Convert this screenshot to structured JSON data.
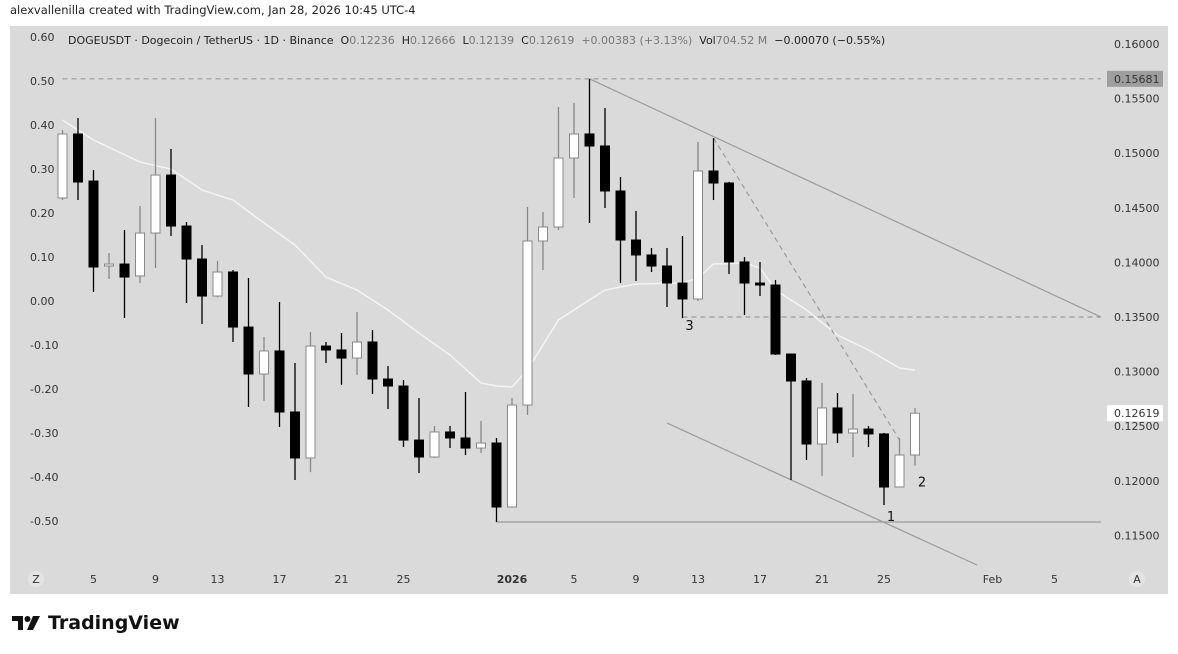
{
  "credit": "alexvallenilla created with TradingView.com, Jan 28, 2026 10:45 UTC-4",
  "legend": {
    "symbol": "DOGEUSDT · Dogecoin / TetherUS · 1D · Binance",
    "o_label": "O",
    "o": "0.12236",
    "h_label": "H",
    "h": "0.12666",
    "l_label": "L",
    "l": "0.12139",
    "c_label": "C",
    "c": "0.12619",
    "change": "+0.00383 (+3.13%)",
    "vol_label": "Vol",
    "vol": "704.52 M",
    "indicator": "−0.00070 (−0.55%)"
  },
  "logo": {
    "text": "TradingView"
  },
  "colors": {
    "background": "#dadada",
    "bear": "#000000",
    "bull": "#ffffff",
    "bull_border": "#888888",
    "ma": "#f4f4f4",
    "drawing": "#9a9a9a",
    "high_tag": "#9e9e9e"
  },
  "chart_data": {
    "type": "candlestick",
    "right_axis": {
      "ticks": [
        "0.16000",
        "0.15500",
        "0.15000",
        "0.14500",
        "0.14000",
        "0.13500",
        "0.13000",
        "0.12500",
        "0.12000",
        "0.11500"
      ],
      "range": [
        0.1125,
        0.1645
      ]
    },
    "left_axis": {
      "ticks": [
        "0.60",
        "0.50",
        "0.40",
        "0.30",
        "0.20",
        "0.10",
        "0.00",
        "-0.10",
        "-0.20",
        "-0.30",
        "-0.40",
        "-0.50"
      ]
    },
    "x_axis": {
      "ticks": [
        {
          "label": "5",
          "date": "2025-12-05"
        },
        {
          "label": "9",
          "date": "2025-12-09"
        },
        {
          "label": "13",
          "date": "2025-12-13"
        },
        {
          "label": "17",
          "date": "2025-12-17"
        },
        {
          "label": "21",
          "date": "2025-12-21"
        },
        {
          "label": "25",
          "date": "2025-12-25"
        },
        {
          "label": "2026",
          "date": "2026-01-01",
          "bold": true
        },
        {
          "label": "5",
          "date": "2026-01-05"
        },
        {
          "label": "9",
          "date": "2026-01-09"
        },
        {
          "label": "13",
          "date": "2026-01-13"
        },
        {
          "label": "17",
          "date": "2026-01-17"
        },
        {
          "label": "21",
          "date": "2026-01-21"
        },
        {
          "label": "25",
          "date": "2026-01-25"
        },
        {
          "label": "Feb",
          "date": "2026-02-01"
        },
        {
          "label": "5",
          "date": "2026-02-05"
        }
      ],
      "left_button": "Z",
      "right_button": "A"
    },
    "price_tags": [
      {
        "value": "0.15681",
        "style": "high"
      },
      {
        "value": "0.12619",
        "style": "last"
      }
    ],
    "candles": [
      [
        "2025-12-03",
        0.1459,
        0.15212,
        0.14571,
        0.15176
      ],
      [
        "2025-12-04",
        0.15176,
        0.15322,
        0.14571,
        0.14736
      ],
      [
        "2025-12-05",
        0.14745,
        0.14846,
        0.13729,
        0.13958
      ],
      [
        "2025-12-06",
        0.13967,
        0.14086,
        0.13848,
        0.13985
      ],
      [
        "2025-12-07",
        0.13985,
        0.14297,
        0.13491,
        0.13866
      ],
      [
        "2025-12-08",
        0.13876,
        0.14517,
        0.13811,
        0.14269
      ],
      [
        "2025-12-09",
        0.14269,
        0.15322,
        0.13949,
        0.148
      ],
      [
        "2025-12-10",
        0.148,
        0.15039,
        0.14242,
        0.14333
      ],
      [
        "2025-12-11",
        0.14333,
        0.1437,
        0.13628,
        0.14031
      ],
      [
        "2025-12-12",
        0.14031,
        0.14159,
        0.13436,
        0.13692
      ],
      [
        "2025-12-13",
        0.13692,
        0.14013,
        0.1368,
        0.13912
      ],
      [
        "2025-12-14",
        0.13912,
        0.1393,
        0.13271,
        0.13408
      ],
      [
        "2025-12-15",
        0.13408,
        0.13857,
        0.12676,
        0.12978
      ],
      [
        "2025-12-16",
        0.12978,
        0.13317,
        0.12731,
        0.13189
      ],
      [
        "2025-12-17",
        0.13189,
        0.13637,
        0.12493,
        0.1263
      ],
      [
        "2025-12-18",
        0.1263,
        0.13079,
        0.12007,
        0.12209
      ],
      [
        "2025-12-19",
        0.12209,
        0.13363,
        0.1208,
        0.13234
      ],
      [
        "2025-12-20",
        0.13234,
        0.13271,
        0.13079,
        0.13198
      ],
      [
        "2025-12-21",
        0.13198,
        0.13353,
        0.12877,
        0.13124
      ],
      [
        "2025-12-22",
        0.13124,
        0.13546,
        0.12969,
        0.13271
      ],
      [
        "2025-12-23",
        0.13271,
        0.13381,
        0.12795,
        0.12932
      ],
      [
        "2025-12-24",
        0.12932,
        0.13051,
        0.12657,
        0.12868
      ],
      [
        "2025-12-25",
        0.12868,
        0.12923,
        0.12309,
        0.12373
      ],
      [
        "2025-12-26",
        0.12373,
        0.12758,
        0.12071,
        0.12218
      ],
      [
        "2025-12-27",
        0.12218,
        0.12502,
        0.12209,
        0.12447
      ],
      [
        "2025-12-28",
        0.12447,
        0.12502,
        0.123,
        0.12392
      ],
      [
        "2025-12-29",
        0.12392,
        0.12813,
        0.12236,
        0.123
      ],
      [
        "2025-12-30",
        0.123,
        0.12548,
        0.12254,
        0.12346
      ],
      [
        "2025-12-31",
        0.12346,
        0.12392,
        0.11623,
        0.1176
      ],
      [
        "2026-01-01",
        0.1176,
        0.12758,
        0.1176,
        0.12694
      ],
      [
        "2026-01-02",
        0.12694,
        0.14507,
        0.12602,
        0.14196
      ],
      [
        "2026-01-03",
        0.14196,
        0.14462,
        0.1393,
        0.14324
      ],
      [
        "2026-01-04",
        0.14324,
        0.15423,
        0.14297,
        0.14956
      ],
      [
        "2026-01-05",
        0.14956,
        0.1546,
        0.1459,
        0.15176
      ],
      [
        "2026-01-06",
        0.15176,
        0.15681,
        0.14361,
        0.15066
      ],
      [
        "2026-01-07",
        0.15066,
        0.15414,
        0.14498,
        0.14654
      ],
      [
        "2026-01-08",
        0.14654,
        0.14782,
        0.13811,
        0.14205
      ],
      [
        "2026-01-09",
        0.14205,
        0.14471,
        0.1383,
        0.14068
      ],
      [
        "2026-01-10",
        0.14068,
        0.14132,
        0.13912,
        0.13967
      ],
      [
        "2026-01-11",
        0.13967,
        0.14132,
        0.13592,
        0.13811
      ],
      [
        "2026-01-12",
        0.13811,
        0.14242,
        0.1349,
        0.13665
      ],
      [
        "2026-01-13",
        0.13665,
        0.15103,
        0.13647,
        0.14837
      ],
      [
        "2026-01-14",
        0.14837,
        0.15139,
        0.14571,
        0.14727
      ],
      [
        "2026-01-15",
        0.14727,
        0.14737,
        0.13894,
        0.14004
      ],
      [
        "2026-01-16",
        0.14004,
        0.14049,
        0.13518,
        0.13811
      ],
      [
        "2026-01-17",
        0.13811,
        0.14004,
        0.13692,
        0.13793
      ],
      [
        "2026-01-18",
        0.13793,
        0.13839,
        0.13152,
        0.13161
      ],
      [
        "2026-01-19",
        0.13161,
        0.13161,
        0.12007,
        0.12914
      ],
      [
        "2026-01-20",
        0.12914,
        0.12941,
        0.1219,
        0.12337
      ],
      [
        "2026-01-21",
        0.12337,
        0.12896,
        0.12044,
        0.12667
      ],
      [
        "2026-01-22",
        0.12667,
        0.12804,
        0.12346,
        0.12438
      ],
      [
        "2026-01-23",
        0.12438,
        0.12795,
        0.12218,
        0.12474
      ],
      [
        "2026-01-24",
        0.12474,
        0.12502,
        0.12309,
        0.12429
      ],
      [
        "2026-01-25",
        0.12429,
        0.12438,
        0.11778,
        0.11943
      ],
      [
        "2026-01-26",
        0.11943,
        0.12392,
        0.11943,
        0.12236
      ],
      [
        "2026-01-27",
        0.12236,
        0.12666,
        0.12139,
        0.12619
      ]
    ],
    "moving_average": [
      [
        "2025-12-03",
        0.15304
      ],
      [
        "2025-12-05",
        0.15121
      ],
      [
        "2025-12-08",
        0.14919
      ],
      [
        "2025-12-10",
        0.14855
      ],
      [
        "2025-12-12",
        0.14663
      ],
      [
        "2025-12-14",
        0.14571
      ],
      [
        "2025-12-16",
        0.14361
      ],
      [
        "2025-12-18",
        0.14159
      ],
      [
        "2025-12-20",
        0.13866
      ],
      [
        "2025-12-22",
        0.13747
      ],
      [
        "2025-12-24",
        0.13564
      ],
      [
        "2025-12-26",
        0.13353
      ],
      [
        "2025-12-28",
        0.13152
      ],
      [
        "2025-12-30",
        0.12896
      ],
      [
        "2025-12-31",
        0.12868
      ],
      [
        "2026-01-01",
        0.12859
      ],
      [
        "2026-01-02",
        0.13015
      ],
      [
        "2026-01-04",
        0.13473
      ],
      [
        "2026-01-06",
        0.13656
      ],
      [
        "2026-01-07",
        0.13747
      ],
      [
        "2026-01-09",
        0.13802
      ],
      [
        "2026-01-12",
        0.13811
      ],
      [
        "2026-01-13",
        0.13857
      ],
      [
        "2026-01-14",
        0.13985
      ],
      [
        "2026-01-16",
        0.13995
      ],
      [
        "2026-01-17",
        0.13949
      ],
      [
        "2026-01-18",
        0.13747
      ],
      [
        "2026-01-20",
        0.13564
      ],
      [
        "2026-01-22",
        0.13335
      ],
      [
        "2026-01-24",
        0.13198
      ],
      [
        "2026-01-26",
        0.13033
      ],
      [
        "2026-01-27",
        0.13015
      ]
    ],
    "drawings": [
      {
        "kind": "horizontal-dashed",
        "from": [
          "2025-12-03",
          0.15681
        ],
        "to": [
          "2026-02-08",
          0.15681
        ]
      },
      {
        "kind": "trendline",
        "from": [
          "2026-01-06",
          0.15681
        ],
        "to": [
          "2026-02-08",
          0.135
        ]
      },
      {
        "kind": "trendline-dashed",
        "from": [
          "2026-01-14",
          0.15139
        ],
        "to": [
          "2026-01-26",
          0.12373
        ]
      },
      {
        "kind": "horizontal-dashed",
        "from": [
          "2026-01-12",
          0.135
        ],
        "to": [
          "2026-02-08",
          0.135
        ]
      },
      {
        "kind": "horizontal",
        "from": [
          "2025-12-31",
          0.11623
        ],
        "to": [
          "2026-02-08",
          0.11623
        ]
      },
      {
        "kind": "trendline",
        "from": [
          "2026-01-11",
          0.12529
        ],
        "to": [
          "2026-01-31",
          0.11229
        ]
      }
    ],
    "labels": [
      {
        "text": "3",
        "date": "2026-01-12",
        "price": 0.1338
      },
      {
        "text": "1",
        "date": "2026-01-25",
        "price": 0.1163
      },
      {
        "text": "2",
        "date": "2026-01-27",
        "price": 0.1195
      }
    ]
  }
}
